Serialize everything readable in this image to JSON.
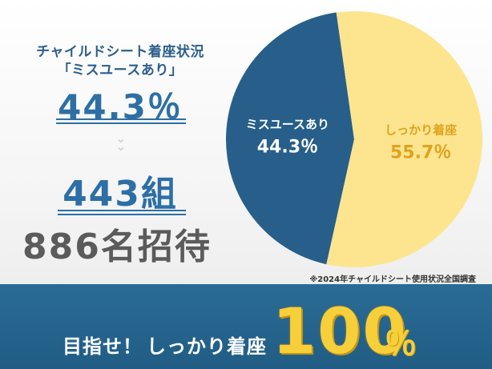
{
  "left": {
    "heading_line1": "チャイルドシート着座状況",
    "heading_line2": "「ミスユースあり」",
    "misuse_percent": "44.3％",
    "groups": "443組",
    "invite": "886名招待"
  },
  "chart_data": {
    "type": "pie",
    "slices": [
      {
        "label": "ミスユースあり",
        "value": 44.3,
        "display": "44.3％",
        "color": "#275f8a",
        "text_color": "#ffffff"
      },
      {
        "label": "しっかり着座",
        "value": 55.7,
        "display": "55.7％",
        "color": "#fde58f",
        "text_color": "#e0a21f"
      }
    ],
    "start_angle_deg": 0,
    "direction": "counterclockwise-for-first-slice"
  },
  "note": "※2024年チャイルドシート使用状況全国調査",
  "banner": {
    "label": "目指せ！",
    "strong": "しっかり着座",
    "number": "100",
    "unit": "％"
  }
}
